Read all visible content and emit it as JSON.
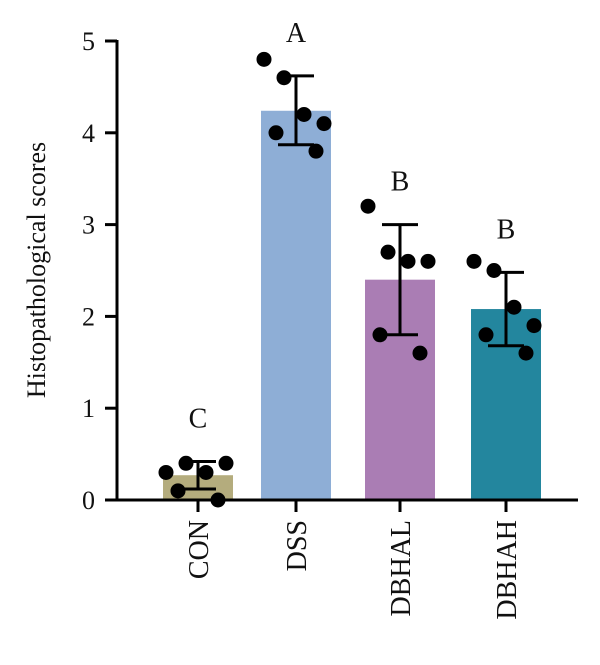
{
  "chart_data": {
    "type": "bar",
    "ylabel": "Histopathological scores",
    "xlabel": "",
    "ylim": [
      0,
      5
    ],
    "yticks": [
      0,
      1,
      2,
      3,
      4,
      5
    ],
    "categories": [
      "CON",
      "DSS",
      "DBHAL",
      "DBHAH"
    ],
    "means": [
      0.27,
      4.24,
      2.4,
      2.08
    ],
    "error_upper": [
      0.42,
      4.62,
      3.0,
      2.48
    ],
    "error_lower": [
      0.12,
      3.87,
      1.8,
      1.68
    ],
    "significance": [
      "C",
      "A",
      "B",
      "B"
    ],
    "colors": [
      "#b4ac7d",
      "#8eaed6",
      "#aa7db4",
      "#23869e"
    ],
    "points": [
      [
        0.3,
        0.4,
        0.3,
        0.4,
        0.1,
        0.0
      ],
      [
        4.8,
        4.6,
        4.2,
        4.1,
        4.0,
        3.8
      ],
      [
        3.2,
        2.7,
        2.6,
        2.6,
        1.8,
        1.6
      ],
      [
        2.6,
        2.5,
        2.1,
        1.9,
        1.8,
        1.6
      ]
    ]
  }
}
